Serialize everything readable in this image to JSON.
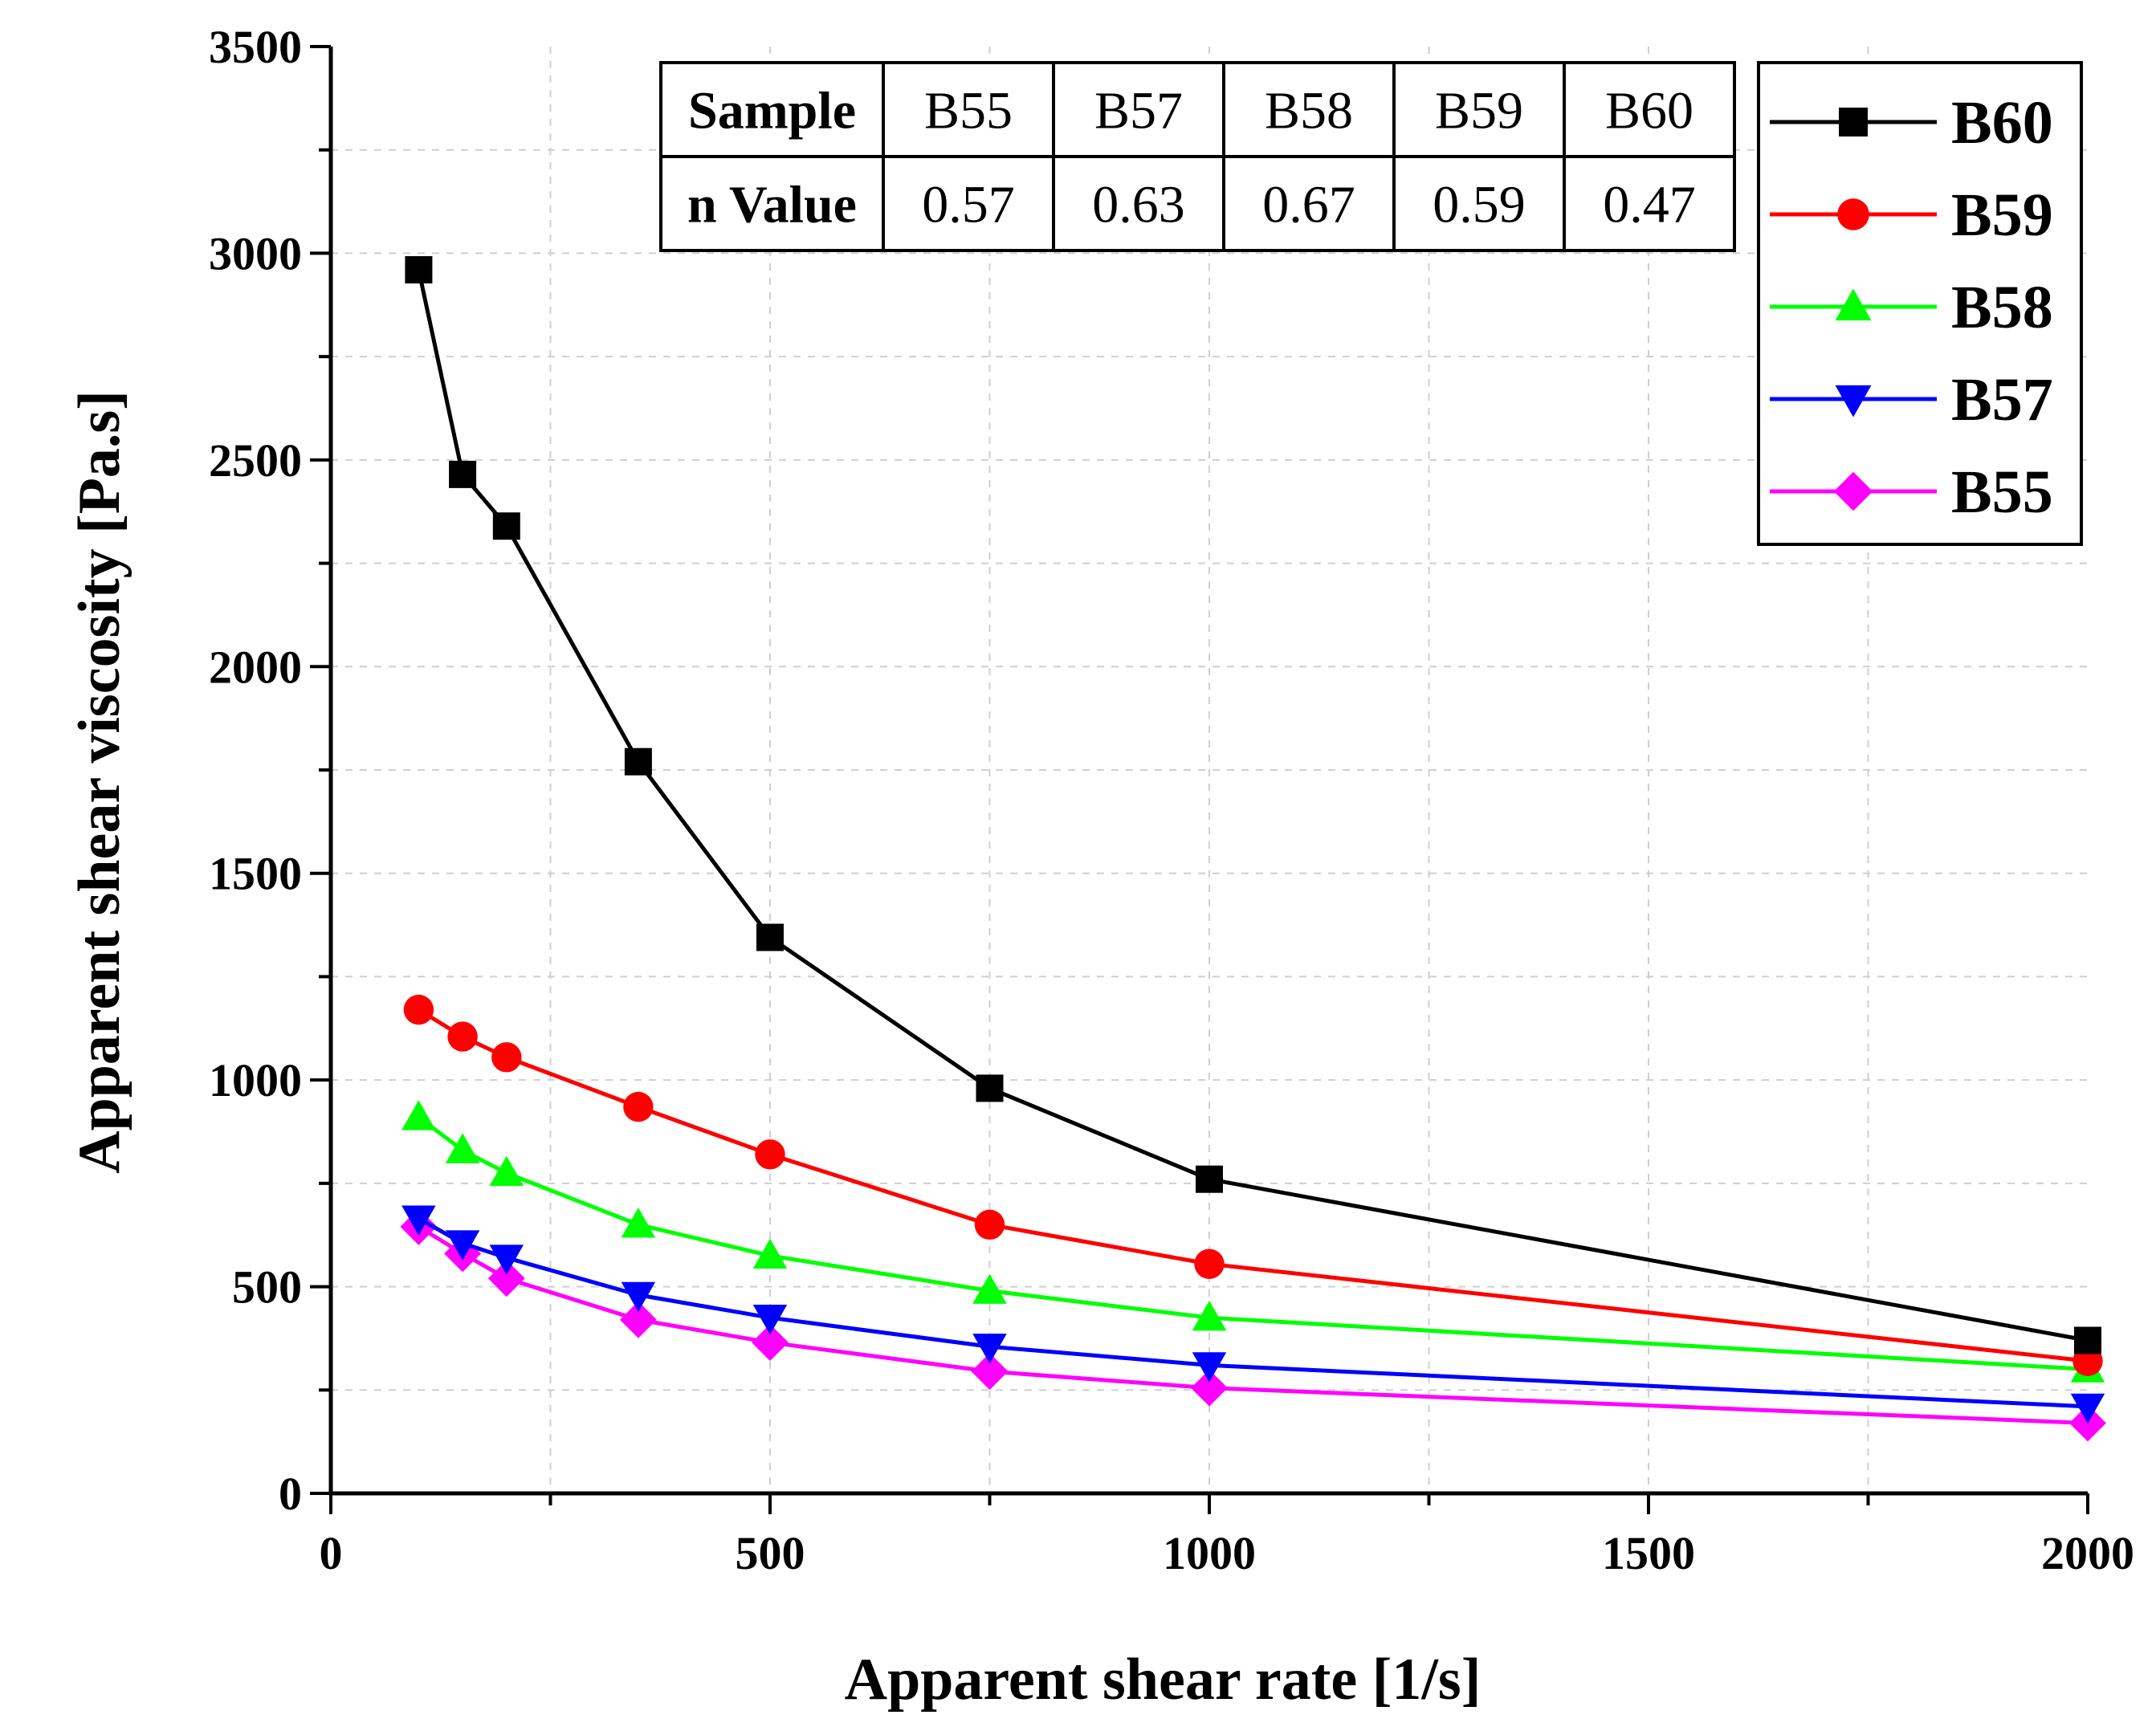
{
  "chart_data": {
    "type": "line",
    "title": "",
    "xlabel": "Apparent shear rate [1/s]",
    "ylabel": "Apparent shear viscosity [Pa.s]",
    "xlim": [
      0,
      2000
    ],
    "ylim": [
      0,
      3500
    ],
    "x_ticks": [
      0,
      500,
      1000,
      1500,
      2000
    ],
    "y_ticks": [
      0,
      500,
      1000,
      1500,
      2000,
      2500,
      3000,
      3500
    ],
    "grid": true,
    "legend_position": "top-right",
    "x": [
      100,
      150,
      200,
      350,
      500,
      750,
      1000,
      2000
    ],
    "series": [
      {
        "name": "B60",
        "color": "#000000",
        "marker": "square",
        "values": [
          2960,
          2465,
          2340,
          1770,
          1345,
          980,
          760,
          370
        ]
      },
      {
        "name": "B59",
        "color": "#ff0000",
        "marker": "circle",
        "values": [
          1170,
          1105,
          1055,
          935,
          820,
          650,
          555,
          320
        ]
      },
      {
        "name": "B58",
        "color": "#00ff00",
        "marker": "triangle-up",
        "values": [
          910,
          830,
          775,
          650,
          575,
          490,
          425,
          300
        ]
      },
      {
        "name": "B57",
        "color": "#0000ff",
        "marker": "triangle-down",
        "values": [
          665,
          605,
          570,
          480,
          425,
          355,
          310,
          210
        ]
      },
      {
        "name": "B55",
        "color": "#ff00ff",
        "marker": "diamond",
        "values": [
          645,
          580,
          520,
          420,
          365,
          295,
          255,
          170
        ]
      }
    ],
    "inset_table": {
      "header": [
        "Sample",
        "B55",
        "B57",
        "B58",
        "B59",
        "B60"
      ],
      "row": [
        "n Value",
        "0.57",
        "0.63",
        "0.67",
        "0.59",
        "0.47"
      ]
    }
  }
}
